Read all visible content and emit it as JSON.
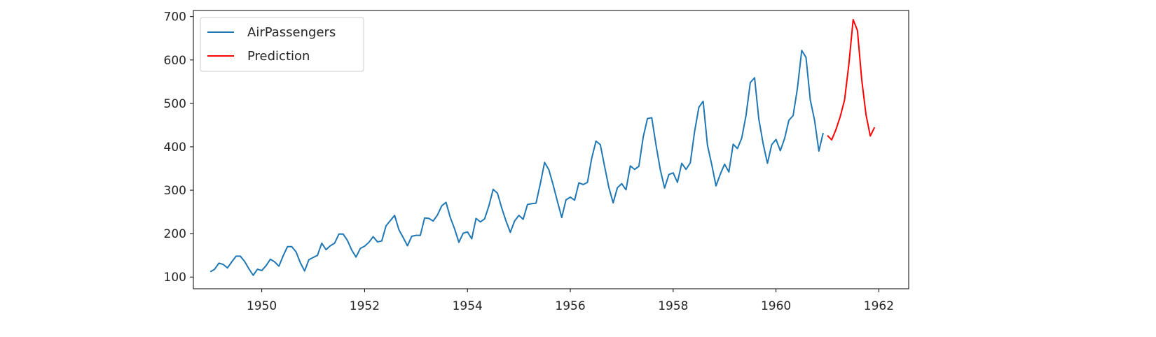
{
  "chart_data": {
    "type": "line",
    "title": "",
    "xlabel": "",
    "ylabel": "",
    "xlim": [
      1948.67,
      1962.58
    ],
    "ylim": [
      73,
      714
    ],
    "x_ticks": [
      1950,
      1952,
      1954,
      1956,
      1958,
      1960,
      1962
    ],
    "y_ticks": [
      100,
      200,
      300,
      400,
      500,
      600,
      700
    ],
    "grid": false,
    "legend_position": "top-left",
    "series": [
      {
        "name": "AirPassengers",
        "color": "#1f77b4",
        "start": 1949.0,
        "step_years": 0.0833333,
        "values": [
          112,
          118,
          132,
          129,
          121,
          135,
          148,
          148,
          136,
          119,
          104,
          118,
          115,
          126,
          141,
          135,
          125,
          149,
          170,
          170,
          158,
          133,
          114,
          140,
          145,
          150,
          178,
          163,
          172,
          178,
          199,
          199,
          184,
          162,
          146,
          166,
          171,
          180,
          193,
          181,
          183,
          218,
          230,
          242,
          209,
          191,
          172,
          194,
          196,
          196,
          236,
          235,
          229,
          243,
          264,
          272,
          237,
          211,
          180,
          201,
          204,
          188,
          235,
          227,
          234,
          264,
          302,
          293,
          259,
          229,
          203,
          229,
          242,
          233,
          267,
          269,
          270,
          315,
          364,
          347,
          312,
          274,
          237,
          278,
          284,
          277,
          317,
          313,
          318,
          374,
          413,
          405,
          355,
          306,
          271,
          306,
          315,
          301,
          356,
          348,
          355,
          422,
          465,
          467,
          404,
          347,
          305,
          336,
          340,
          318,
          362,
          348,
          363,
          435,
          491,
          505,
          404,
          359,
          310,
          337,
          360,
          342,
          406,
          396,
          420,
          472,
          548,
          559,
          463,
          407,
          362,
          405,
          417,
          391,
          419,
          461,
          472,
          535,
          622,
          606,
          508,
          461,
          390,
          432
        ]
      },
      {
        "name": "Prediction",
        "color": "#ff0000",
        "start": 1961.0,
        "step_years": 0.0833333,
        "values": [
          426,
          416,
          440,
          470,
          508,
          590,
          693,
          668,
          555,
          474,
          425,
          445
        ]
      }
    ]
  }
}
